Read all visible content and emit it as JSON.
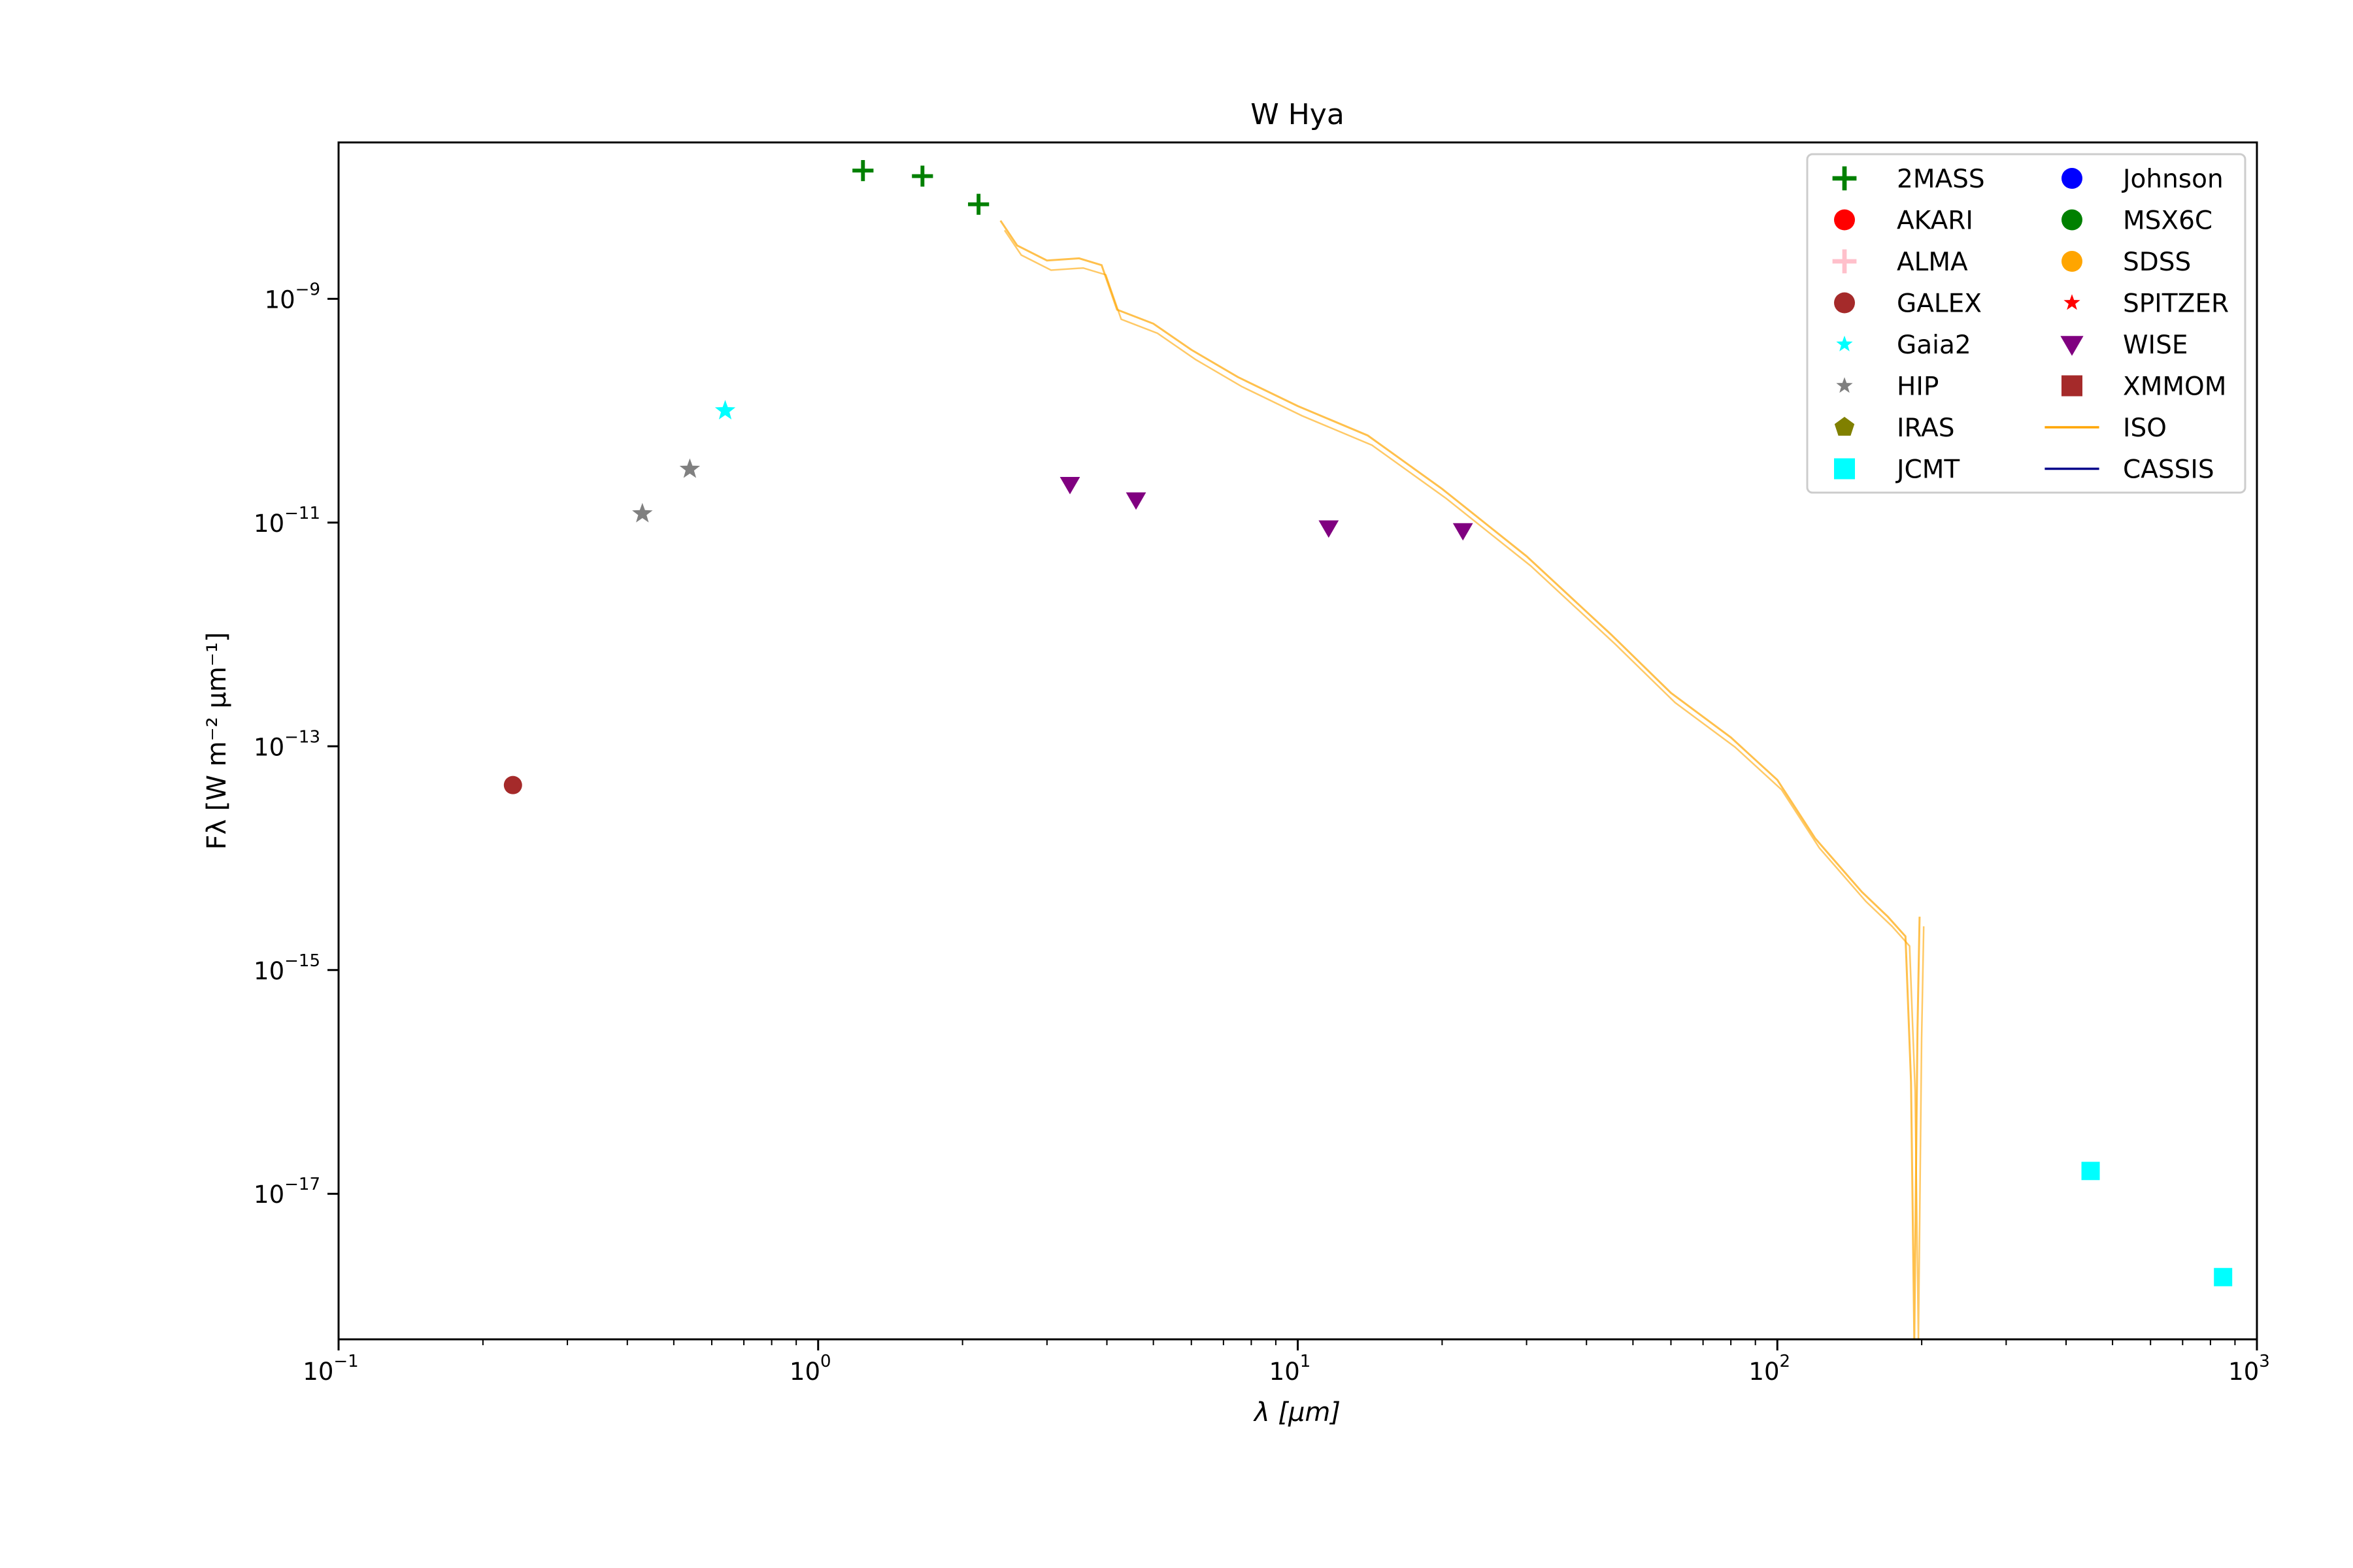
{
  "chart_data": {
    "type": "scatter",
    "title": "W Hya",
    "xlabel": "λ [μm]",
    "ylabel": "Fλ [W m⁻² μm⁻¹]",
    "xscale": "log",
    "yscale": "log",
    "xlim": [
      0.1,
      1000
    ],
    "ylim": [
      5e-19,
      2.5e-08
    ],
    "grid": false,
    "legend_position": "top-right",
    "x_ticks": [
      {
        "value": 0.1,
        "base": "10",
        "exp": "−1"
      },
      {
        "value": 1,
        "base": "10",
        "exp": "0"
      },
      {
        "value": 10,
        "base": "10",
        "exp": "1"
      },
      {
        "value": 100,
        "base": "10",
        "exp": "2"
      },
      {
        "value": 1000,
        "base": "10",
        "exp": "3"
      }
    ],
    "y_ticks": [
      {
        "value": 1e-17,
        "base": "10",
        "exp": "−17"
      },
      {
        "value": 1e-15,
        "base": "10",
        "exp": "−15"
      },
      {
        "value": 1e-13,
        "base": "10",
        "exp": "−13"
      },
      {
        "value": 1e-11,
        "base": "10",
        "exp": "−11"
      },
      {
        "value": 1e-09,
        "base": "10",
        "exp": "−9"
      }
    ],
    "series": [
      {
        "name": "2MASS",
        "marker": "plus",
        "color": "#008000",
        "points": [
          [
            1.24,
            1.4e-08
          ],
          [
            1.65,
            1.25e-08
          ],
          [
            2.16,
            7e-09
          ]
        ]
      },
      {
        "name": "AKARI",
        "marker": "circle",
        "color": "#ff0000",
        "points": []
      },
      {
        "name": "ALMA",
        "marker": "plus",
        "color": "#ffc0cb",
        "points": []
      },
      {
        "name": "GALEX",
        "marker": "circle",
        "color": "#a52a2a",
        "points": [
          [
            0.231,
            4.5e-14
          ]
        ]
      },
      {
        "name": "Gaia2",
        "marker": "star",
        "color": "#00ffff",
        "points": [
          [
            0.64,
            1e-10
          ]
        ]
      },
      {
        "name": "HIP",
        "marker": "star",
        "color": "#808080",
        "points": [
          [
            0.43,
            1.2e-11
          ],
          [
            0.54,
            3e-11
          ]
        ]
      },
      {
        "name": "IRAS",
        "marker": "pentagon",
        "color": "#808000",
        "points": []
      },
      {
        "name": "JCMT",
        "marker": "square",
        "color": "#00ffff",
        "points": [
          [
            450,
            1.6e-17
          ],
          [
            850,
            1.8e-18
          ]
        ]
      },
      {
        "name": "Johnson",
        "marker": "circle",
        "color": "#0000ff",
        "points": []
      },
      {
        "name": "MSX6C",
        "marker": "circle",
        "color": "#008000",
        "points": []
      },
      {
        "name": "SDSS",
        "marker": "circle",
        "color": "#ffa500",
        "points": []
      },
      {
        "name": "SPITZER",
        "marker": "star",
        "color": "#ff0000",
        "points": []
      },
      {
        "name": "WISE",
        "marker": "triangle-down",
        "color": "#800080",
        "points": [
          [
            3.35,
            2.2e-11
          ],
          [
            4.6,
            1.6e-11
          ],
          [
            11.6,
            9e-12
          ],
          [
            22.1,
            8.5e-12
          ]
        ]
      },
      {
        "name": "XMMOM",
        "marker": "square",
        "color": "#a52a2a",
        "points": []
      },
      {
        "name": "ISO",
        "marker": "line",
        "color": "#ffa500",
        "points": [
          [
            2.4,
            5e-09
          ],
          [
            2.6,
            3e-09
          ],
          [
            3.0,
            2.2e-09
          ],
          [
            3.5,
            2.3e-09
          ],
          [
            3.9,
            2e-09
          ],
          [
            4.2,
            8e-10
          ],
          [
            5.0,
            6e-10
          ],
          [
            6.0,
            3.5e-10
          ],
          [
            7.5,
            2e-10
          ],
          [
            10.0,
            1.1e-10
          ],
          [
            14.0,
            6e-11
          ],
          [
            20.0,
            2e-11
          ],
          [
            30.0,
            5e-12
          ],
          [
            45.0,
            1e-12
          ],
          [
            60.0,
            3e-13
          ],
          [
            80.0,
            1.2e-13
          ],
          [
            100.0,
            5e-14
          ],
          [
            120.0,
            1.5e-14
          ],
          [
            150.0,
            5e-15
          ],
          [
            170.0,
            3e-15
          ],
          [
            185.0,
            2e-15
          ],
          [
            190.0,
            1e-16
          ],
          [
            193.0,
            5e-19
          ],
          [
            196.0,
            3e-16
          ],
          [
            198.0,
            3e-15
          ]
        ]
      },
      {
        "name": "CASSIS",
        "marker": "line",
        "color": "#00008b",
        "points": []
      }
    ]
  }
}
